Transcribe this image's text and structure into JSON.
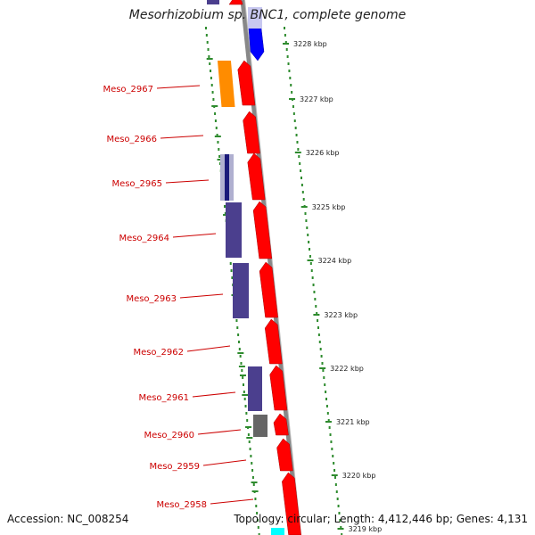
{
  "title": "Mesorhizobium sp. BNC1, complete genome",
  "footer": {
    "accession": "Accession: NC_008254",
    "summary": "Topology: circular; Length: 4,412,446 bp; Genes: 4,131"
  },
  "scale_labels": [
    "3228 kbp",
    "3227 kbp",
    "3226 kbp",
    "3225 kbp",
    "3224 kbp",
    "3223 kbp",
    "3222 kbp",
    "3221 kbp",
    "3220 kbp",
    "3219 kbp"
  ],
  "gene_labels": [
    "Meso_2967",
    "Meso_2966",
    "Meso_2965",
    "Meso_2964",
    "Meso_2963",
    "Meso_2962",
    "Meso_2961",
    "Meso_2960",
    "Meso_2959",
    "Meso_2958"
  ],
  "colors": {
    "label_red": "#cc0000",
    "cds_red": "#ff0000",
    "cds_blue": "#0000ff",
    "cog_purple": "#4b3f8e",
    "cog_orange": "#ff8c00",
    "cog_gray": "#666666",
    "cog_cyan": "#00ffff",
    "backbone": "#888888",
    "tick_green": "#2e8b2e"
  }
}
